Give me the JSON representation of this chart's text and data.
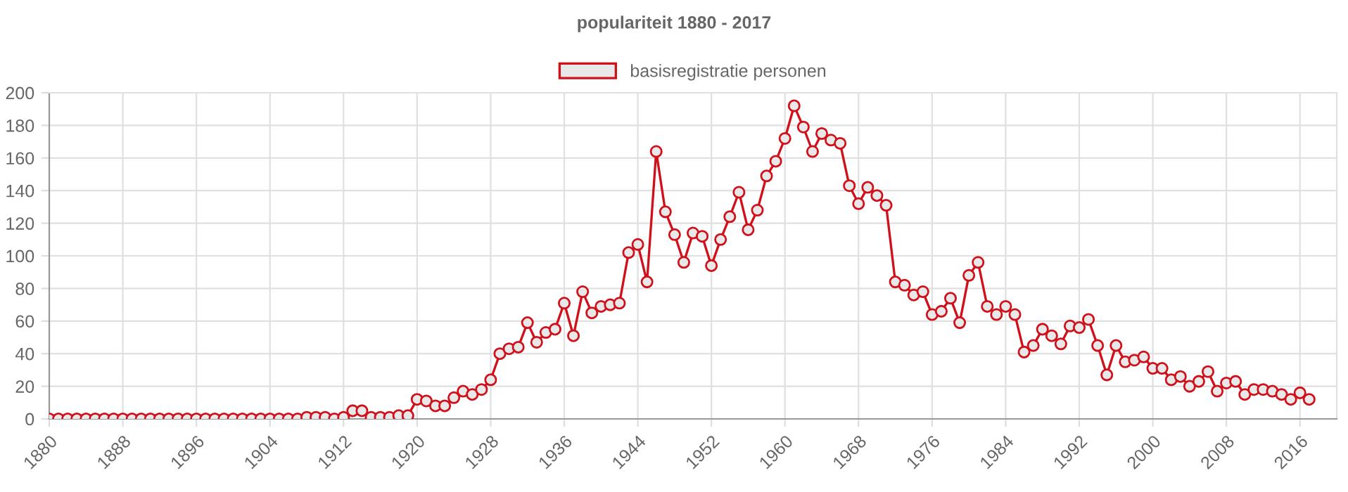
{
  "chart_data": {
    "type": "line",
    "title": "populariteit 1880 - 2017",
    "x": [
      1880,
      1881,
      1882,
      1883,
      1884,
      1885,
      1886,
      1887,
      1888,
      1889,
      1890,
      1891,
      1892,
      1893,
      1894,
      1895,
      1896,
      1897,
      1898,
      1899,
      1900,
      1901,
      1902,
      1903,
      1904,
      1905,
      1906,
      1907,
      1908,
      1909,
      1910,
      1911,
      1912,
      1913,
      1914,
      1915,
      1916,
      1917,
      1918,
      1919,
      1920,
      1921,
      1922,
      1923,
      1924,
      1925,
      1926,
      1927,
      1928,
      1929,
      1930,
      1931,
      1932,
      1933,
      1934,
      1935,
      1936,
      1937,
      1938,
      1939,
      1940,
      1941,
      1942,
      1943,
      1944,
      1945,
      1946,
      1947,
      1948,
      1949,
      1950,
      1951,
      1952,
      1953,
      1954,
      1955,
      1956,
      1957,
      1958,
      1959,
      1960,
      1961,
      1962,
      1963,
      1964,
      1965,
      1966,
      1967,
      1968,
      1969,
      1970,
      1971,
      1972,
      1973,
      1974,
      1975,
      1976,
      1977,
      1978,
      1979,
      1980,
      1981,
      1982,
      1983,
      1984,
      1985,
      1986,
      1987,
      1988,
      1989,
      1990,
      1991,
      1992,
      1993,
      1994,
      1995,
      1996,
      1997,
      1998,
      1999,
      2000,
      2001,
      2002,
      2003,
      2004,
      2005,
      2006,
      2007,
      2008,
      2009,
      2010,
      2011,
      2012,
      2013,
      2014,
      2015,
      2016,
      2017
    ],
    "series": [
      {
        "name": "basisregistratie personen",
        "color": "#d0101a",
        "values": [
          0,
          0,
          0,
          0,
          0,
          0,
          0,
          0,
          0,
          0,
          0,
          0,
          0,
          0,
          0,
          0,
          0,
          0,
          0,
          0,
          0,
          0,
          0,
          0,
          0,
          0,
          0,
          0,
          1,
          1,
          1,
          0,
          1,
          5,
          5,
          1,
          1,
          1,
          2,
          2,
          12,
          11,
          8,
          8,
          13,
          17,
          15,
          18,
          24,
          40,
          43,
          44,
          59,
          47,
          53,
          55,
          71,
          51,
          78,
          65,
          69,
          70,
          71,
          102,
          107,
          84,
          164,
          127,
          113,
          96,
          114,
          112,
          94,
          110,
          124,
          139,
          116,
          128,
          149,
          158,
          172,
          192,
          179,
          164,
          175,
          171,
          169,
          143,
          132,
          142,
          137,
          131,
          84,
          82,
          76,
          78,
          64,
          66,
          74,
          59,
          88,
          96,
          69,
          64,
          69,
          64,
          41,
          45,
          55,
          51,
          46,
          57,
          56,
          61,
          45,
          27,
          45,
          35,
          36,
          38,
          31,
          31,
          24,
          26,
          20,
          23,
          29,
          17,
          22,
          23,
          15,
          18,
          18,
          17,
          15,
          12,
          16,
          12
        ]
      }
    ],
    "xlim": [
      1880,
      2020
    ],
    "xticks": [
      1880,
      1888,
      1896,
      1904,
      1912,
      1920,
      1928,
      1936,
      1944,
      1952,
      1960,
      1968,
      1976,
      1984,
      1992,
      2000,
      2008,
      2016
    ],
    "ylim": [
      0,
      200
    ],
    "yticks": [
      0,
      20,
      40,
      60,
      80,
      100,
      120,
      140,
      160,
      180,
      200
    ],
    "grid": true,
    "legend": "top",
    "marker": "circle",
    "line_style": "solid"
  }
}
